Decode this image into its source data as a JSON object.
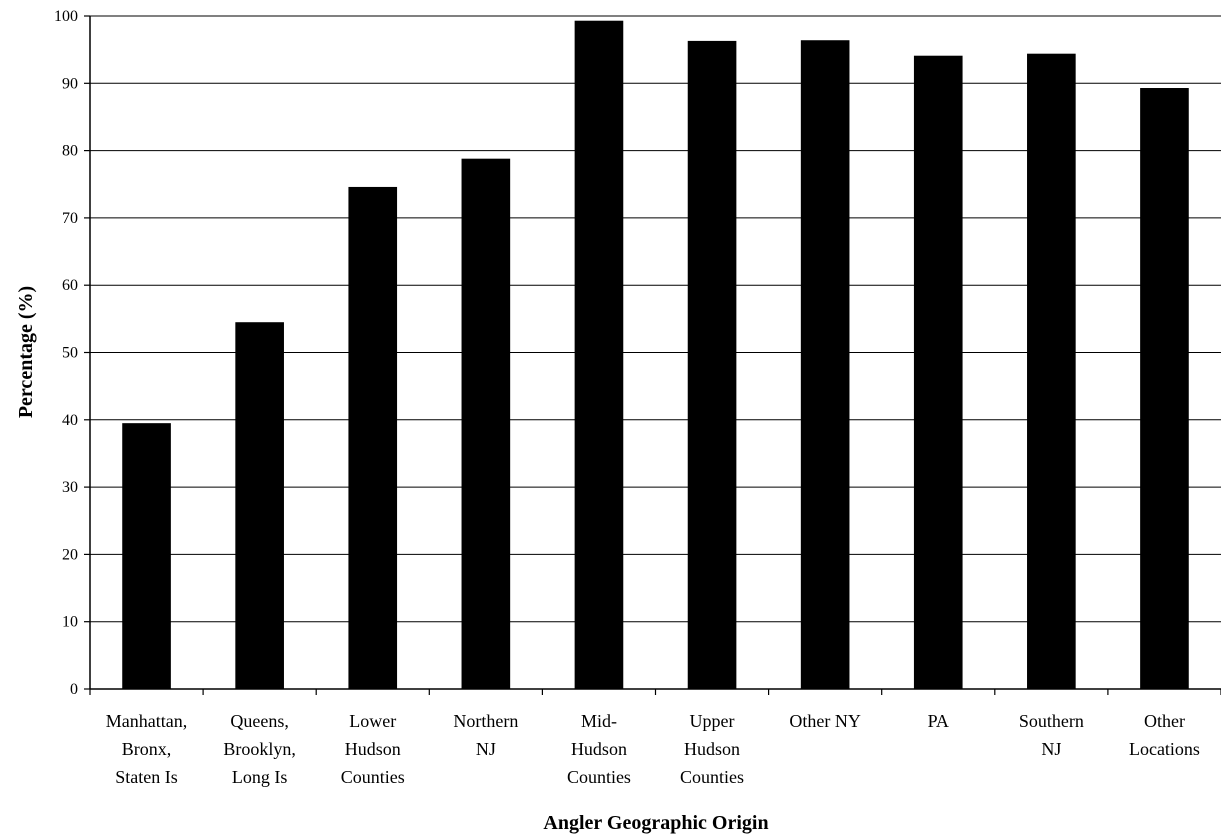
{
  "chart_data": {
    "type": "bar",
    "title": "",
    "xlabel": "Angler Geographic Origin",
    "ylabel": "Percentage (%)",
    "ylim": [
      0,
      100
    ],
    "yticks": [
      "0",
      "10",
      "20",
      "30",
      "40",
      "50",
      "60",
      "70",
      "80",
      "90",
      "100"
    ],
    "grid": true,
    "categories": [
      [
        "Manhattan,",
        "Bronx,",
        "Staten Is"
      ],
      [
        "Queens,",
        "Brooklyn,",
        "Long Is"
      ],
      [
        "Lower",
        "Hudson",
        "Counties"
      ],
      [
        "Northern",
        "NJ"
      ],
      [
        "Mid-",
        "Hudson",
        "Counties"
      ],
      [
        "Upper",
        "Hudson",
        "Counties"
      ],
      [
        "Other NY"
      ],
      [
        "PA"
      ],
      [
        "Southern",
        "NJ"
      ],
      [
        "Other",
        "Locations"
      ]
    ],
    "values": [
      39.5,
      54.5,
      74.6,
      78.8,
      99.3,
      96.3,
      96.4,
      94.1,
      94.4,
      89.3
    ],
    "bar_color": "#000000"
  }
}
